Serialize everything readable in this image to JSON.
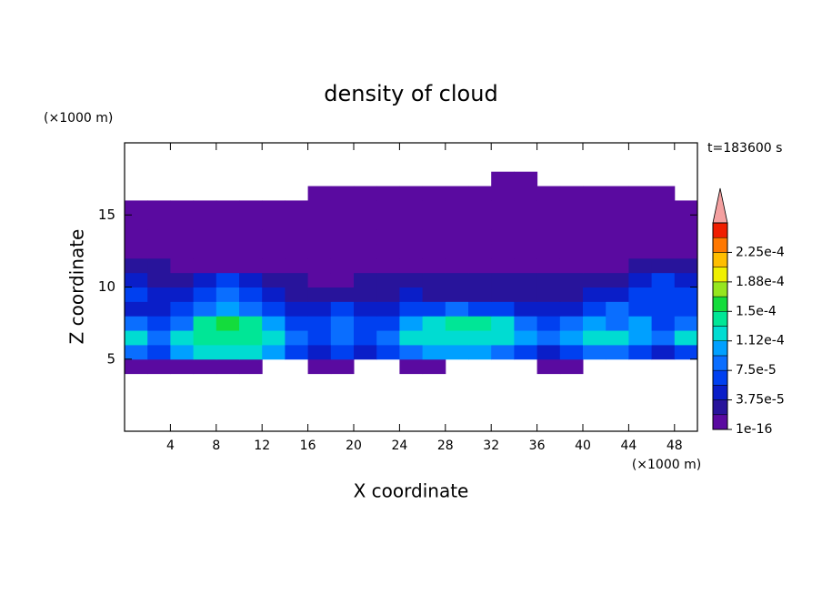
{
  "chart_data": {
    "type": "contourf",
    "title": "density of cloud",
    "xlabel": "X coordinate",
    "ylabel": "Z coordinate",
    "x_unit": "(×1000 m)",
    "y_unit": "(×1000 m)",
    "annotation": "t=183600 s",
    "xlim": [
      0,
      50
    ],
    "ylim": [
      0,
      20
    ],
    "xticks": [
      4,
      8,
      12,
      16,
      20,
      24,
      28,
      32,
      36,
      40,
      44,
      48
    ],
    "yticks": [
      5,
      10,
      15
    ],
    "x": [
      1,
      3,
      5,
      7,
      9,
      11,
      13,
      15,
      17,
      19,
      21,
      23,
      25,
      27,
      29,
      31,
      33,
      35,
      37,
      39,
      41,
      43,
      45,
      47,
      49
    ],
    "y": [
      4.5,
      5.5,
      6.5,
      7.5,
      8.5,
      9.5,
      10.5,
      11.5,
      12.5,
      13.5,
      14.5,
      15.5,
      16.5,
      17.5
    ],
    "values": [
      [
        1e-05,
        1e-05,
        1e-05,
        1e-05,
        1e-05,
        1e-05,
        0,
        0,
        1e-05,
        1e-05,
        0,
        0,
        1e-05,
        1e-05,
        0,
        0,
        0,
        0,
        1e-05,
        1e-05,
        0,
        0,
        0,
        0,
        0
      ],
      [
        8e-05,
        6e-05,
        0.0001,
        0.00012,
        0.00012,
        0.00012,
        0.0001,
        6e-05,
        4.5e-05,
        6e-05,
        4.5e-05,
        6e-05,
        8e-05,
        0.0001,
        0.0001,
        0.0001,
        8e-05,
        6e-05,
        4.5e-05,
        6e-05,
        8e-05,
        8e-05,
        6e-05,
        4.5e-05,
        6e-05
      ],
      [
        0.00012,
        8e-05,
        0.00012,
        0.00014,
        0.00014,
        0.00014,
        0.00012,
        8e-05,
        6e-05,
        8e-05,
        6e-05,
        8e-05,
        0.00012,
        0.00012,
        0.00012,
        0.00012,
        0.00012,
        0.0001,
        8e-05,
        0.0001,
        0.00012,
        0.00012,
        0.0001,
        8e-05,
        0.00012
      ],
      [
        8e-05,
        6e-05,
        8e-05,
        0.00014,
        0.00016,
        0.00014,
        0.0001,
        6e-05,
        6e-05,
        8e-05,
        6e-05,
        6e-05,
        0.0001,
        0.00012,
        0.00014,
        0.00014,
        0.00012,
        8e-05,
        6e-05,
        8e-05,
        0.0001,
        8e-05,
        0.0001,
        6e-05,
        8e-05
      ],
      [
        4.5e-05,
        4.5e-05,
        6e-05,
        8e-05,
        0.0001,
        8e-05,
        6e-05,
        4.5e-05,
        4.5e-05,
        6e-05,
        4.5e-05,
        4.5e-05,
        6e-05,
        6e-05,
        8e-05,
        6e-05,
        6e-05,
        4.5e-05,
        4.5e-05,
        4.5e-05,
        6e-05,
        8e-05,
        6e-05,
        6e-05,
        6e-05
      ],
      [
        6e-05,
        4.5e-05,
        4.5e-05,
        6e-05,
        8e-05,
        6e-05,
        4.5e-05,
        2.5e-05,
        2.5e-05,
        2.5e-05,
        2.5e-05,
        2.5e-05,
        4.5e-05,
        2.5e-05,
        2.5e-05,
        2.5e-05,
        2.5e-05,
        2.5e-05,
        2.5e-05,
        2.5e-05,
        4.5e-05,
        4.5e-05,
        6e-05,
        6e-05,
        6e-05
      ],
      [
        4.5e-05,
        2.5e-05,
        2.5e-05,
        4.5e-05,
        6e-05,
        4.5e-05,
        2.5e-05,
        2.5e-05,
        1e-05,
        1e-05,
        2.5e-05,
        2.5e-05,
        2.5e-05,
        2.5e-05,
        2.5e-05,
        2.5e-05,
        2.5e-05,
        2.5e-05,
        2.5e-05,
        2.5e-05,
        2.5e-05,
        2.5e-05,
        4.5e-05,
        6e-05,
        4.5e-05
      ],
      [
        2.5e-05,
        2.5e-05,
        1e-05,
        1e-05,
        1e-05,
        1e-05,
        1e-05,
        1e-05,
        1e-05,
        1e-05,
        1e-05,
        1e-05,
        1e-05,
        1e-05,
        1e-05,
        1e-05,
        1e-05,
        1e-05,
        1e-05,
        1e-05,
        1e-05,
        1e-05,
        2.5e-05,
        2.5e-05,
        2.5e-05
      ],
      [
        1e-05,
        1e-05,
        1e-05,
        1e-05,
        1e-05,
        1e-05,
        1e-05,
        1e-05,
        1e-05,
        1e-05,
        1e-05,
        1e-05,
        1e-05,
        1e-05,
        1e-05,
        1e-05,
        1e-05,
        1e-05,
        1e-05,
        1e-05,
        1e-05,
        1e-05,
        1e-05,
        1e-05,
        1e-05
      ],
      [
        1e-05,
        1e-05,
        1e-05,
        1e-05,
        1e-05,
        1e-05,
        1e-05,
        1e-05,
        1e-05,
        1e-05,
        1e-05,
        1e-05,
        1e-05,
        1e-05,
        1e-05,
        1e-05,
        1e-05,
        1e-05,
        1e-05,
        1e-05,
        1e-05,
        1e-05,
        1e-05,
        1e-05,
        1e-05
      ],
      [
        1e-05,
        1e-05,
        1e-05,
        1e-05,
        1e-05,
        1e-05,
        1e-05,
        1e-05,
        1e-05,
        1e-05,
        1e-05,
        1e-05,
        1e-05,
        1e-05,
        1e-05,
        1e-05,
        1e-05,
        1e-05,
        1e-05,
        1e-05,
        1e-05,
        1e-05,
        1e-05,
        1e-05,
        1e-05
      ],
      [
        1e-05,
        1e-05,
        1e-05,
        1e-05,
        1e-05,
        1e-05,
        1e-05,
        1e-05,
        1e-05,
        1e-05,
        1e-05,
        1e-05,
        1e-05,
        1e-05,
        1e-05,
        1e-05,
        1e-05,
        1e-05,
        1e-05,
        1e-05,
        1e-05,
        1e-05,
        1e-05,
        1e-05,
        1e-05
      ],
      [
        0,
        0,
        0,
        0,
        0,
        0,
        0,
        0,
        1e-05,
        1e-05,
        1e-05,
        1e-05,
        1e-05,
        1e-05,
        1e-05,
        1e-05,
        1e-05,
        1e-05,
        1e-05,
        1e-05,
        1e-05,
        1e-05,
        1e-05,
        1e-05,
        0
      ],
      [
        0,
        0,
        0,
        0,
        0,
        0,
        0,
        0,
        0,
        0,
        0,
        0,
        0,
        0,
        0,
        0,
        1e-05,
        1e-05,
        0,
        0,
        0,
        0,
        0,
        0,
        0
      ]
    ],
    "levels": [
      1e-16,
      1.875e-05,
      3.75e-05,
      5.625e-05,
      7.5e-05,
      9.375e-05,
      0.0001125,
      0.00013125,
      0.00015,
      0.00016875,
      0.0001875,
      0.00020625,
      0.000225,
      0.00024375,
      0.0002625
    ],
    "colors": [
      "#5a0aa0",
      "#28149b",
      "#0a1ec8",
      "#0040f0",
      "#0a6eff",
      "#00a0ff",
      "#00dcd2",
      "#00e696",
      "#14dc3c",
      "#96e61e",
      "#f0f000",
      "#ffbe00",
      "#ff7800",
      "#f01e00"
    ],
    "over_color": "#f4a0a0",
    "cbar_ticks": [
      {
        "value": 1e-16,
        "label": "1e-16"
      },
      {
        "value": 3.75e-05,
        "label": "3.75e-5"
      },
      {
        "value": 7.5e-05,
        "label": "7.5e-5"
      },
      {
        "value": 0.0001125,
        "label": "1.12e-4"
      },
      {
        "value": 0.00015,
        "label": "1.5e-4"
      },
      {
        "value": 0.0001875,
        "label": "1.88e-4"
      },
      {
        "value": 0.000225,
        "label": "2.25e-4"
      }
    ]
  }
}
